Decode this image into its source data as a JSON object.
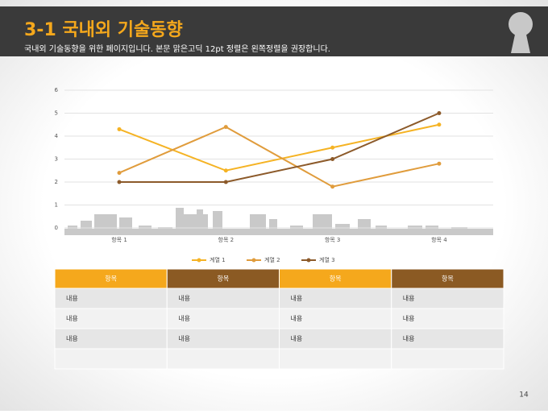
{
  "header": {
    "title": "3-1 국내외 기술동향",
    "subtitle": "국내외 기술동향을 위한 페이지입니다. 본문 맑은고딕 12pt 정렬은 왼쪽정렬을 권장합니다."
  },
  "chart_data": {
    "type": "line",
    "categories": [
      "항목 1",
      "항목 2",
      "항목 3",
      "항목 4"
    ],
    "series": [
      {
        "name": "계열 1",
        "color": "#f5b324",
        "values": [
          4.3,
          2.5,
          3.5,
          4.5
        ]
      },
      {
        "name": "계열 2",
        "color": "#e09c3c",
        "values": [
          2.4,
          4.4,
          1.8,
          2.8
        ]
      },
      {
        "name": "계열 3",
        "color": "#8c5a2a",
        "values": [
          2,
          2,
          3,
          5
        ]
      }
    ],
    "ylim": [
      0,
      6
    ],
    "yticks": [
      0,
      1,
      2,
      3,
      4,
      5,
      6
    ],
    "grid": true,
    "legend": "bottom"
  },
  "table": {
    "header": [
      "항목",
      "항목",
      "항목",
      "항목"
    ],
    "header_colors": [
      "#f5a81c",
      "#8b5a23",
      "#f5a81c",
      "#8b5a23"
    ],
    "rows": [
      [
        "내용",
        "내용",
        "내용",
        "내용"
      ],
      [
        "내용",
        "내용",
        "내용",
        "내용"
      ],
      [
        "내용",
        "내용",
        "내용",
        "내용"
      ]
    ]
  },
  "page_number": "14"
}
